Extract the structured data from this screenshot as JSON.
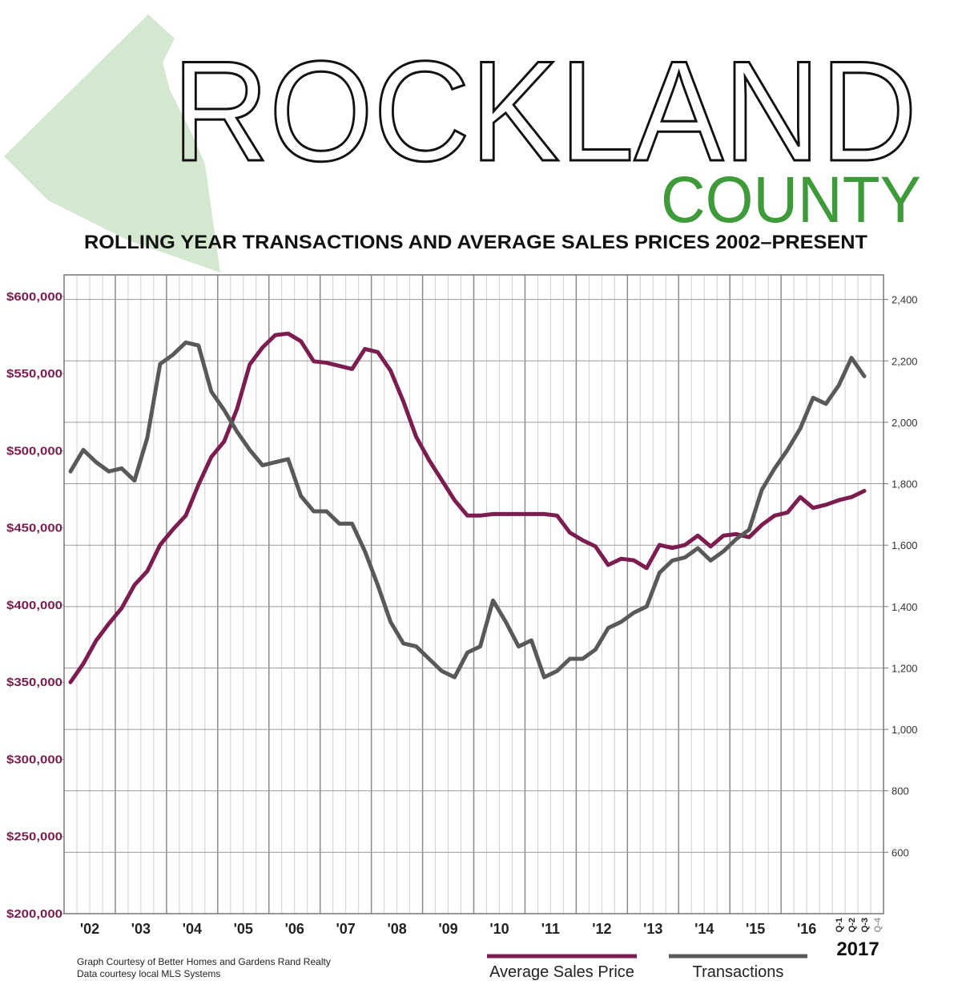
{
  "chart_data": {
    "type": "line",
    "title": "ROCKLAND",
    "subtitle": "COUNTY",
    "heading": "ROLLING YEAR TRANSACTIONS AND AVERAGE SALES PRICES 2002–PRESENT",
    "categories": [
      "'02",
      null,
      null,
      null,
      "'03",
      null,
      null,
      null,
      "'04",
      null,
      null,
      null,
      "'05",
      null,
      null,
      null,
      "'06",
      null,
      null,
      null,
      "'07",
      null,
      null,
      null,
      "'08",
      null,
      null,
      null,
      "'09",
      null,
      null,
      null,
      "'10",
      null,
      null,
      null,
      "'11",
      null,
      null,
      null,
      "'12",
      null,
      null,
      null,
      "'13",
      null,
      null,
      null,
      "'14",
      null,
      null,
      null,
      "'15",
      null,
      null,
      null,
      "'16",
      null,
      null,
      null,
      "Q-1",
      "Q-2",
      "Q-3",
      "Q-4"
    ],
    "category_group_label": "2017",
    "series": [
      {
        "name": "Average Sales Price",
        "color": "#7b1d4f",
        "axis": "y",
        "values": [
          350000,
          362000,
          377000,
          388000,
          398000,
          413000,
          422000,
          439000,
          449000,
          458000,
          478000,
          496000,
          506000,
          527000,
          556000,
          567000,
          575000,
          576000,
          571000,
          558000,
          557000,
          555000,
          553000,
          566000,
          564000,
          552000,
          532000,
          509000,
          494000,
          481000,
          468000,
          458000,
          458000,
          459000,
          459000,
          459000,
          459000,
          459000,
          458000,
          447000,
          442000,
          438000,
          426000,
          430000,
          429000,
          424000,
          439000,
          437000,
          439000,
          445000,
          438000,
          445000,
          446000,
          444000,
          452000,
          458000,
          460000,
          470000,
          463000,
          465000,
          468000,
          470000,
          474000,
          null
        ]
      },
      {
        "name": "Transactions",
        "color": "#58595b",
        "axis": "y2",
        "values": [
          1840,
          1910,
          1870,
          1840,
          1850,
          1810,
          1950,
          2190,
          2220,
          2260,
          2250,
          2100,
          2040,
          1970,
          1910,
          1860,
          1870,
          1880,
          1760,
          1710,
          1710,
          1670,
          1670,
          1580,
          1470,
          1350,
          1280,
          1270,
          1230,
          1190,
          1170,
          1250,
          1270,
          1420,
          1350,
          1270,
          1290,
          1170,
          1190,
          1230,
          1230,
          1260,
          1330,
          1350,
          1380,
          1400,
          1510,
          1550,
          1560,
          1590,
          1550,
          1580,
          1620,
          1650,
          1780,
          1850,
          1910,
          1980,
          2080,
          2060,
          2120,
          2210,
          2150,
          null
        ]
      }
    ],
    "ylim": [
      200000,
      614000
    ],
    "yticks": [
      {
        "value": 600000,
        "label": "$600,000"
      },
      {
        "value": 550000,
        "label": "$550,000"
      },
      {
        "value": 500000,
        "label": "$500,000"
      },
      {
        "value": 450000,
        "label": "$450,000"
      },
      {
        "value": 400000,
        "label": "$400,000"
      },
      {
        "value": 350000,
        "label": "$350,000"
      },
      {
        "value": 300000,
        "label": "$300,000"
      },
      {
        "value": 250000,
        "label": "$250,000"
      },
      {
        "value": 200000,
        "label": "$200,000"
      }
    ],
    "y2lim": [
      400,
      2480
    ],
    "y2ticks": [
      {
        "value": 2400,
        "label": "2,400"
      },
      {
        "value": 2200,
        "label": "2,200"
      },
      {
        "value": 2000,
        "label": "2,000"
      },
      {
        "value": 1800,
        "label": "1,800"
      },
      {
        "value": 1600,
        "label": "1,600"
      },
      {
        "value": 1400,
        "label": "1,400"
      },
      {
        "value": 1200,
        "label": "1,200"
      },
      {
        "value": 1000,
        "label": "1,000"
      },
      800,
      600
    ],
    "grid": true,
    "credits": [
      "Graph Courtesy of Better Homes and Gardens Rand Realty",
      "Data courtesy local MLS Systems"
    ]
  }
}
